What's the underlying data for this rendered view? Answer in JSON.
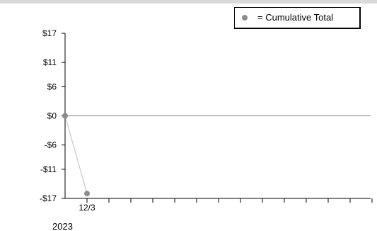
{
  "chart_data": {
    "type": "line",
    "xlabel": "",
    "ylabel": "",
    "ylim": [
      -17,
      17
    ],
    "yticks": [
      {
        "value": 17,
        "label": "$17"
      },
      {
        "value": 11,
        "label": "$11"
      },
      {
        "value": 6,
        "label": "$6"
      },
      {
        "value": 0,
        "label": "$0"
      },
      {
        "value": -6,
        "label": "-$6"
      },
      {
        "value": -11,
        "label": "-$11"
      },
      {
        "value": -17,
        "label": "-$17"
      }
    ],
    "x_tick_labels": [
      {
        "index": 1,
        "label": "12/3"
      }
    ],
    "x_tick_count": 15,
    "year_label": "2023",
    "grid": false,
    "legend_position": "top-right",
    "series": [
      {
        "name": "= Cumulative Total",
        "marker": "circle",
        "color": "#8c8c8c",
        "line_color": "#c8c8c8",
        "points": [
          {
            "index": 0,
            "value": 0
          },
          {
            "index": 1,
            "value": -16
          }
        ]
      }
    ],
    "baseline_value": 0,
    "baseline_color": "#7f7f7f"
  }
}
